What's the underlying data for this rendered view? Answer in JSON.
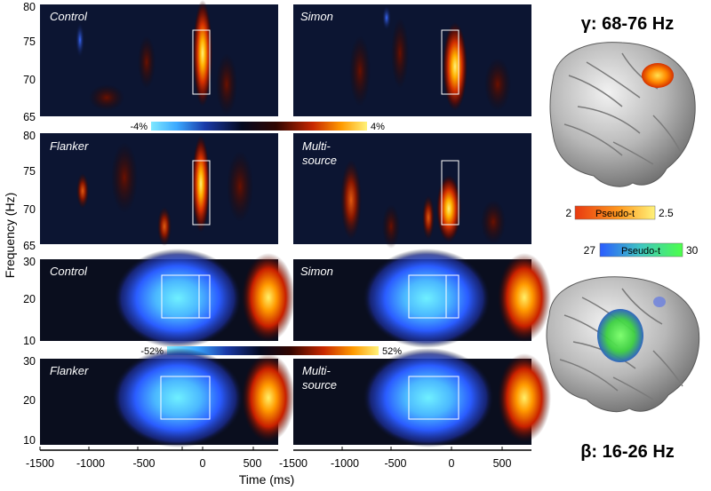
{
  "figure": {
    "y_axis_label": "Frequency (Hz)",
    "x_axis_label": "Time (ms)",
    "x_ticks": [
      "-1500",
      "-1000",
      "-500",
      "0",
      "500"
    ],
    "gamma": {
      "title": "γ: 68-76 Hz",
      "y_ticks": [
        "80",
        "75",
        "70",
        "65"
      ],
      "colorbar": {
        "min_label": "-4%",
        "max_label": "4%"
      },
      "panels": [
        {
          "label": "Control"
        },
        {
          "label": "Simon"
        },
        {
          "label": "Flanker"
        },
        {
          "label": "Multi-\nsource"
        }
      ]
    },
    "beta": {
      "title": "β: 16-26 Hz",
      "y_ticks": [
        "30",
        "20",
        "10"
      ],
      "colorbar": {
        "min_label": "-52%",
        "max_label": "52%"
      },
      "panels": [
        {
          "label": "Control"
        },
        {
          "label": "Simon"
        },
        {
          "label": "Flanker"
        },
        {
          "label": "Multi-\nsource"
        }
      ]
    },
    "source_colorbars": [
      {
        "min": "2",
        "label": "Pseudo-t",
        "max": "2.5"
      },
      {
        "min": "27",
        "label": "Pseudo-t",
        "max": "30"
      }
    ],
    "colors": {
      "gamma_background": "#0c1532",
      "beta_background": "#0a0e1e",
      "heat_hot": "#ffef60",
      "beta_blob": "#5fe0ff",
      "box_outline": "#ffffff"
    }
  }
}
